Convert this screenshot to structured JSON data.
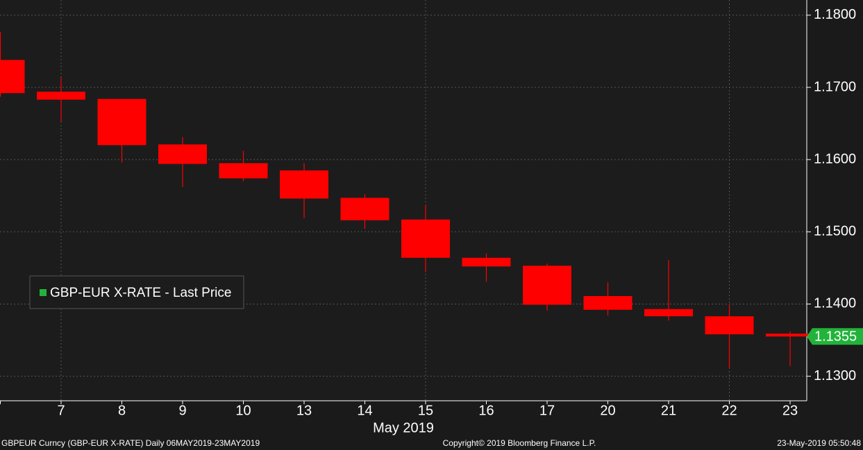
{
  "chart_data": {
    "type": "candlestick",
    "categories": [
      null,
      "7",
      "8",
      "9",
      "10",
      "13",
      "14",
      "15",
      "16",
      "17",
      "20",
      "21",
      "22",
      "23"
    ],
    "x_label": "May 2019",
    "series": [
      {
        "name": "GBP-EUR X-RATE - Last Price",
        "color": "#ff0000",
        "legend_color": "#22b33a",
        "open": [
          1.1738,
          1.1694,
          1.1684,
          1.1621,
          1.1595,
          1.1585,
          1.1547,
          1.1517,
          1.1464,
          1.1453,
          1.1411,
          1.1393,
          1.1383,
          1.1359
        ],
        "high": [
          1.1777,
          1.1714,
          1.1684,
          1.1631,
          1.1612,
          1.1595,
          1.1552,
          1.1537,
          1.147,
          1.1456,
          1.143,
          1.1461,
          1.1399,
          1.1362
        ],
        "low": [
          1.1687,
          1.1653,
          1.1596,
          1.1562,
          1.157,
          1.1519,
          1.1504,
          1.1444,
          1.1431,
          1.1391,
          1.1384,
          1.1377,
          1.1311,
          1.1314
        ],
        "close": [
          1.1692,
          1.1683,
          1.162,
          1.1594,
          1.1574,
          1.1546,
          1.1516,
          1.1464,
          1.1452,
          1.1399,
          1.1392,
          1.1383,
          1.1358,
          1.1355
        ]
      }
    ],
    "ylim": [
      1.1266,
      1.1821
    ],
    "yticks": [
      {
        "value": 1.13,
        "label": "1.1300"
      },
      {
        "value": 1.14,
        "label": "1.1400"
      },
      {
        "value": 1.15,
        "label": "1.1500"
      },
      {
        "value": 1.16,
        "label": "1.1600"
      },
      {
        "value": 1.17,
        "label": "1.1700"
      },
      {
        "value": 1.18,
        "label": "1.1800"
      }
    ],
    "grid": true,
    "last_price_color": "#22b33a",
    "footer": [
      "GBPEUR Curncy (GBP-EUR X-RATE)  Daily 06MAY2019-23MAY2019",
      "Copyright© 2019 Bloomberg Finance L.P.",
      "23-May-2019 05:50:48"
    ]
  }
}
